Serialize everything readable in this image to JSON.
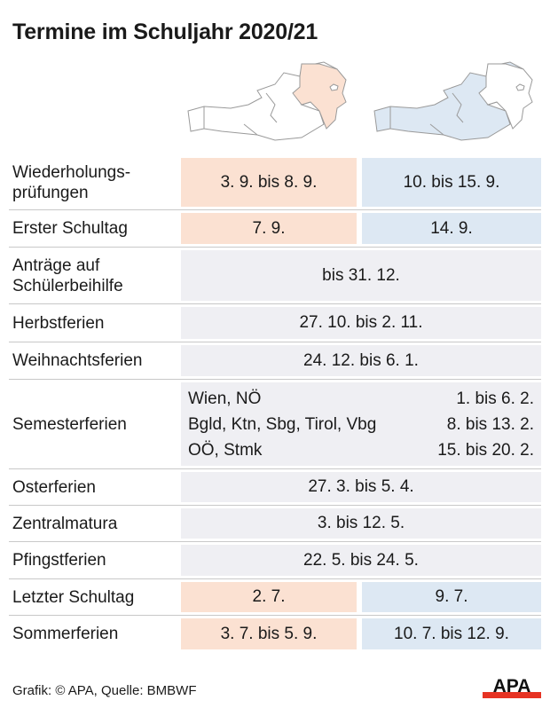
{
  "title": "Termine im Schuljahr 2020/21",
  "colors": {
    "group1": "#fbe1d2",
    "group2": "#dde8f3",
    "all": "#efeff3"
  },
  "maps": [
    {
      "name": "map-group1-wien-noe-bgld",
      "highlight": "Wien, NÖ, Bgld"
    },
    {
      "name": "map-group2-other-states",
      "highlight": "Ktn, Sbg, Tirol, Vbg, OÖ, Stmk"
    }
  ],
  "rows": [
    {
      "label": "Wiederholungs-\nprüfungen",
      "group1": "3. 9. bis 8. 9.",
      "group2": "10. bis 15. 9."
    },
    {
      "label": "Erster Schultag",
      "group1": "7. 9.",
      "group2": "14. 9."
    },
    {
      "label": "Anträge auf\nSchülerbeihilfe",
      "all": "bis 31. 12."
    },
    {
      "label": "Herbstferien",
      "all": "27. 10. bis 2. 11."
    },
    {
      "label": "Weihnachtsferien",
      "all": "24. 12. bis 6. 1."
    },
    {
      "label": "Semesterferien",
      "entries": [
        {
          "states": "Wien, NÖ",
          "dates": "1. bis 6. 2."
        },
        {
          "states": "Bgld, Ktn, Sbg, Tirol, Vbg",
          "dates": "8. bis 13. 2."
        },
        {
          "states": "OÖ, Stmk",
          "dates": "15. bis 20. 2."
        }
      ]
    },
    {
      "label": "Osterferien",
      "all": "27. 3. bis 5. 4."
    },
    {
      "label": "Zentralmatura",
      "all": "3. bis 12. 5."
    },
    {
      "label": "Pfingstferien",
      "all": "22. 5. bis 24. 5."
    },
    {
      "label": "Letzter Schultag",
      "group1": "2. 7.",
      "group2": "9. 7."
    },
    {
      "label": "Sommerferien",
      "group1": "3. 7. bis 5. 9.",
      "group2": "10. 7. bis 12. 9."
    }
  ],
  "footer": "Grafik: © APA, Quelle: BMBWF",
  "logo": "APA"
}
